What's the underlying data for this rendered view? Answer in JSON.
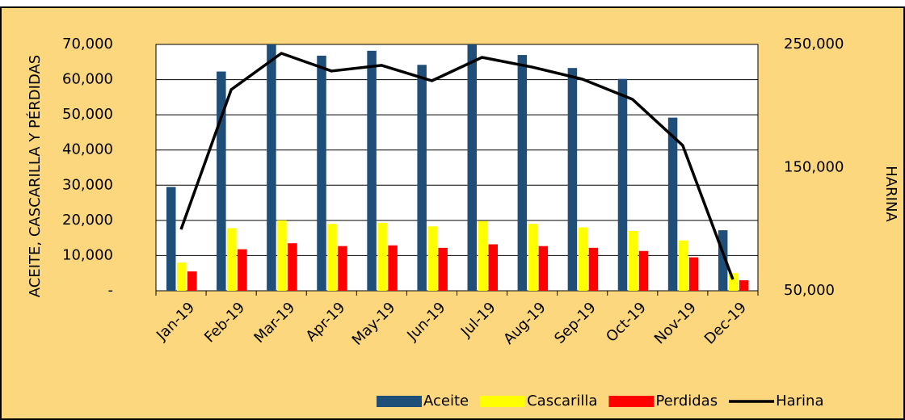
{
  "chart_data": {
    "type": "bar_line",
    "ylabel": "ACEITE,  CASCARILLA Y PÉRDIDAS",
    "y2label": "HARINA",
    "categories": [
      "Jan-19",
      "Feb-19",
      "Mar-19",
      "Apr-19",
      "May-19",
      "Jun-19",
      "Jul-19",
      "Aug-19",
      "Sep-19",
      "Oct-19",
      "Nov-19",
      "Dec-19"
    ],
    "series": [
      {
        "name": "Aceite",
        "color": "#1f4e79",
        "type": "bar",
        "values": [
          29500,
          62300,
          70000,
          66800,
          68200,
          64200,
          70000,
          67000,
          63300,
          60200,
          49200,
          17200
        ]
      },
      {
        "name": "Cascarilla",
        "color": "#ffff00",
        "type": "bar",
        "values": [
          8000,
          17800,
          20000,
          19000,
          19300,
          18300,
          19800,
          19000,
          18000,
          17000,
          14300,
          5000
        ]
      },
      {
        "name": "Perdidas",
        "color": "#ff0000",
        "type": "bar",
        "values": [
          5500,
          11800,
          13500,
          12700,
          12900,
          12200,
          13200,
          12700,
          12200,
          11300,
          9500,
          3000
        ]
      },
      {
        "name": "Harina",
        "color": "#000000",
        "type": "line",
        "axis": "y2",
        "values": [
          99800,
          213300,
          242800,
          228400,
          233000,
          220500,
          239500,
          231600,
          221800,
          205400,
          168000,
          59200
        ]
      }
    ],
    "ylim": [
      0,
      70000
    ],
    "yticks": [
      {
        "value": 0,
        "label": "-"
      },
      {
        "value": 10000,
        "label": "10,000"
      },
      {
        "value": 20000,
        "label": "20,000"
      },
      {
        "value": 30000,
        "label": "30,000"
      },
      {
        "value": 40000,
        "label": "40,000"
      },
      {
        "value": 50000,
        "label": "50,000"
      },
      {
        "value": 60000,
        "label": "60,000"
      },
      {
        "value": 70000,
        "label": "70,000"
      }
    ],
    "y2lim": [
      50000,
      250000
    ],
    "y2ticks": [
      {
        "value": 50000,
        "label": "50,000"
      },
      {
        "value": 150000,
        "label": "150,000"
      },
      {
        "value": 250000,
        "label": "250,000"
      }
    ],
    "grid": true,
    "legend": "bottom-right"
  }
}
